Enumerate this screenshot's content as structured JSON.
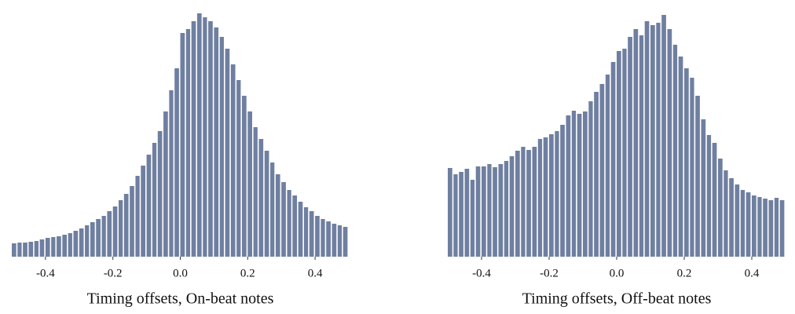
{
  "chart_data": [
    {
      "type": "histogram",
      "xlabel": "Timing offsets, On-beat notes",
      "color": "#6f7fa0",
      "bins": [
        -0.5,
        -0.483,
        -0.467,
        -0.45,
        -0.433,
        -0.417,
        -0.4,
        -0.383,
        -0.367,
        -0.35,
        -0.333,
        -0.317,
        -0.3,
        -0.283,
        -0.267,
        -0.25,
        -0.233,
        -0.217,
        -0.2,
        -0.183,
        -0.167,
        -0.15,
        -0.133,
        -0.117,
        -0.1,
        -0.083,
        -0.067,
        -0.05,
        -0.033,
        -0.017,
        0,
        0.017,
        0.033,
        0.05,
        0.067,
        0.083,
        0.1,
        0.117,
        0.133,
        0.15,
        0.167,
        0.183,
        0.2,
        0.217,
        0.233,
        0.25,
        0.267,
        0.283,
        0.3,
        0.317,
        0.333,
        0.35,
        0.367,
        0.383,
        0.4,
        0.417,
        0.433,
        0.45,
        0.467,
        0.483,
        0.5
      ],
      "values": [
        17,
        18,
        18,
        19,
        20,
        22,
        24,
        25,
        26,
        28,
        30,
        33,
        36,
        40,
        44,
        48,
        52,
        58,
        64,
        72,
        80,
        90,
        103,
        116,
        130,
        145,
        160,
        185,
        212,
        240,
        285,
        290,
        300,
        310,
        305,
        300,
        292,
        280,
        265,
        245,
        225,
        205,
        185,
        165,
        150,
        135,
        120,
        105,
        95,
        85,
        78,
        70,
        63,
        58,
        52,
        48,
        45,
        42,
        40,
        38
      ],
      "xlim": [
        -0.5,
        0.5
      ],
      "ylim": [
        0,
        310
      ],
      "xticks": [
        -0.4,
        -0.2,
        {
          "value": 0,
          "label": "0.0"
        },
        0.2,
        0.4
      ]
    },
    {
      "type": "histogram",
      "xlabel": "Timing offsets, Off-beat notes",
      "color": "#6f7fa0",
      "bins": [
        -0.5,
        -0.483,
        -0.467,
        -0.45,
        -0.433,
        -0.417,
        -0.4,
        -0.383,
        -0.367,
        -0.35,
        -0.333,
        -0.317,
        -0.3,
        -0.283,
        -0.267,
        -0.25,
        -0.233,
        -0.217,
        -0.2,
        -0.183,
        -0.167,
        -0.15,
        -0.133,
        -0.117,
        -0.1,
        -0.083,
        -0.067,
        -0.05,
        -0.033,
        -0.017,
        0,
        0.017,
        0.033,
        0.05,
        0.067,
        0.083,
        0.1,
        0.117,
        0.133,
        0.15,
        0.167,
        0.183,
        0.2,
        0.217,
        0.233,
        0.25,
        0.267,
        0.283,
        0.3,
        0.317,
        0.333,
        0.35,
        0.367,
        0.383,
        0.4,
        0.417,
        0.433,
        0.45,
        0.467,
        0.483,
        0.5
      ],
      "values": [
        113,
        105,
        108,
        112,
        98,
        115,
        115,
        118,
        114,
        118,
        122,
        128,
        135,
        140,
        136,
        140,
        150,
        152,
        156,
        160,
        168,
        180,
        186,
        182,
        185,
        198,
        210,
        220,
        232,
        248,
        262,
        265,
        280,
        290,
        282,
        300,
        295,
        298,
        308,
        290,
        270,
        255,
        240,
        228,
        205,
        175,
        155,
        145,
        125,
        110,
        100,
        92,
        85,
        82,
        78,
        76,
        74,
        72,
        75,
        72
      ],
      "xlim": [
        -0.5,
        0.5
      ],
      "ylim": [
        0,
        310
      ],
      "xticks": [
        -0.4,
        -0.2,
        {
          "value": 0,
          "label": "0.0"
        },
        0.2,
        0.4
      ]
    }
  ]
}
